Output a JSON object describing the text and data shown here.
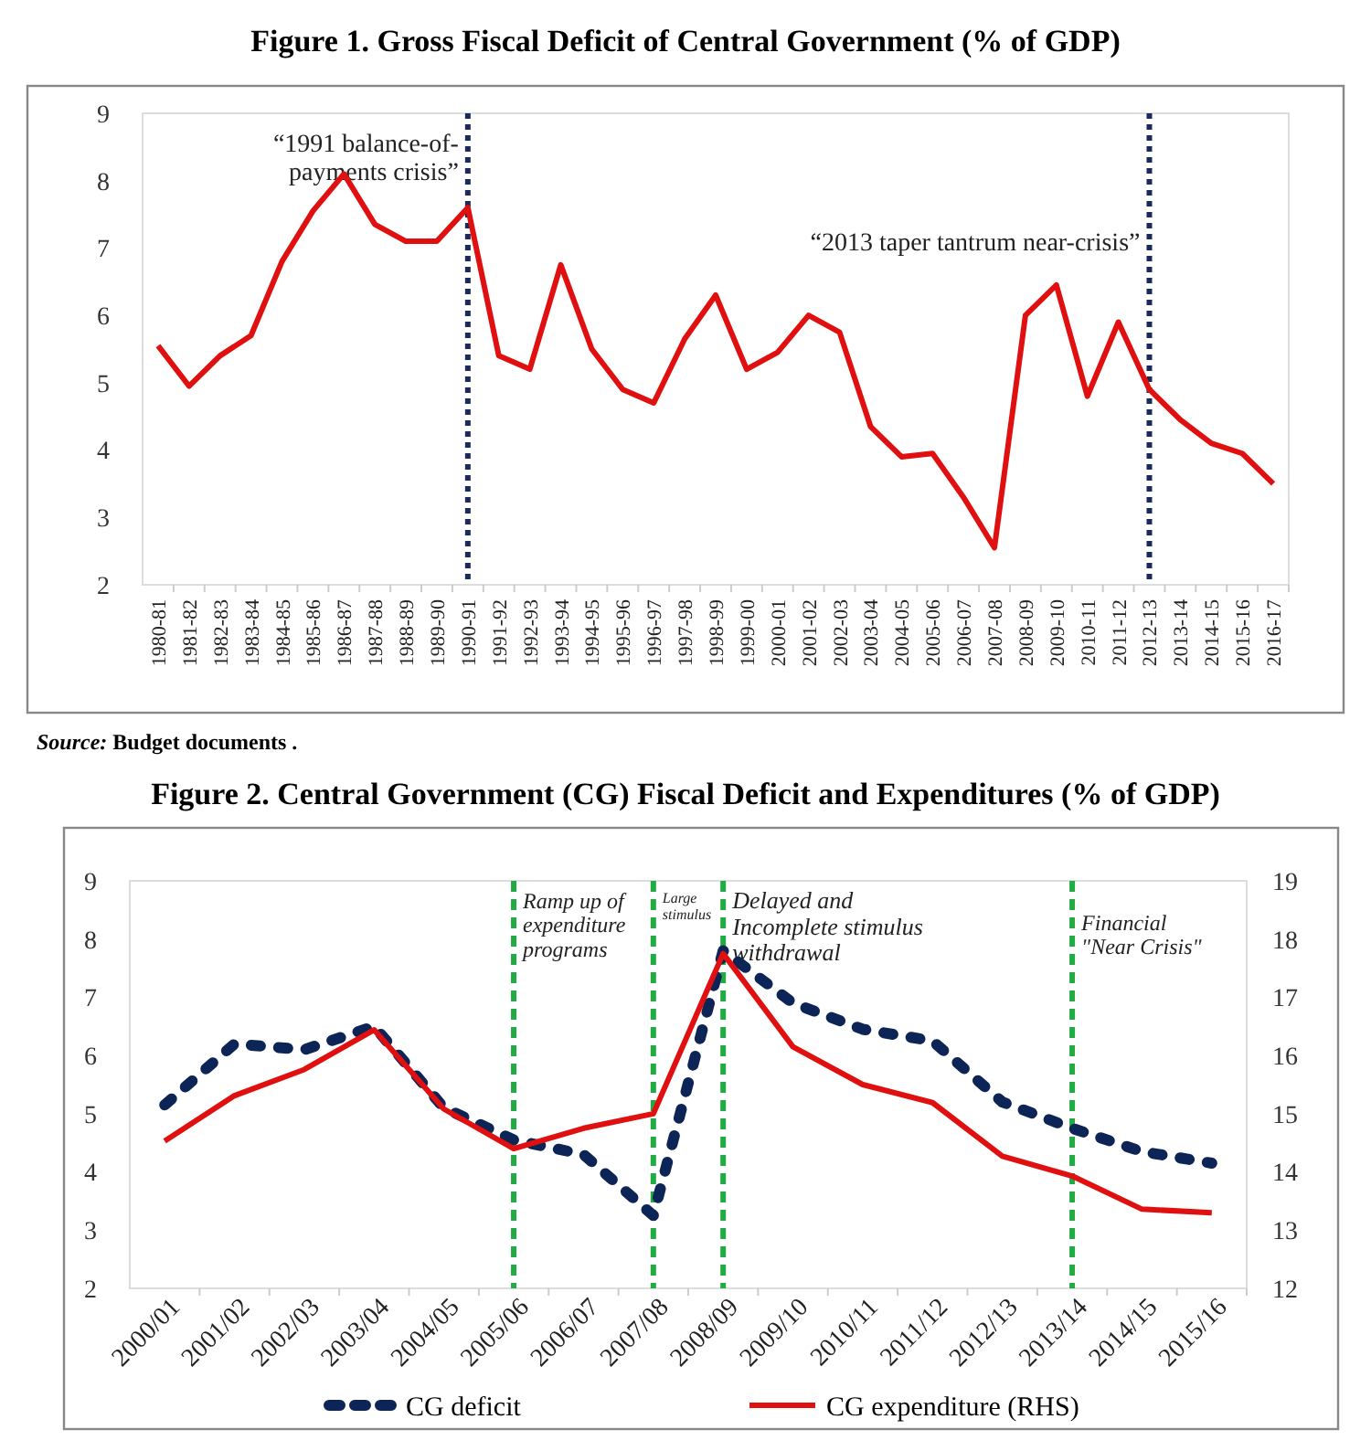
{
  "chart_data": [
    {
      "type": "line",
      "title": "Figure 1. Gross Fiscal Deficit of Central Government (% of GDP)",
      "categories": [
        "1980-81",
        "1981-82",
        "1982-83",
        "1983-84",
        "1984-85",
        "1985-86",
        "1986-87",
        "1987-88",
        "1988-89",
        "1989-90",
        "1990-91",
        "1991-92",
        "1992-93",
        "1993-94",
        "1994-95",
        "1995-96",
        "1996-97",
        "1997-98",
        "1998-99",
        "1999-00",
        "2000-01",
        "2001-02",
        "2002-03",
        "2003-04",
        "2004-05",
        "2005-06",
        "2006-07",
        "2007-08",
        "2008-09",
        "2009-10",
        "2010-11",
        "2011-12",
        "2012-13",
        "2013-14",
        "2014-15",
        "2015-16",
        "2016-17"
      ],
      "series": [
        {
          "color": "#e01010",
          "line_style": "solid",
          "values": [
            5.55,
            4.95,
            5.4,
            5.7,
            6.8,
            7.55,
            8.1,
            7.35,
            7.1,
            7.1,
            7.6,
            5.4,
            5.2,
            6.75,
            5.5,
            4.9,
            4.7,
            5.65,
            6.3,
            5.2,
            5.45,
            6.0,
            5.75,
            4.35,
            3.9,
            3.95,
            3.3,
            2.55,
            6.0,
            6.45,
            4.8,
            5.9,
            4.9,
            4.45,
            4.1,
            3.95,
            3.5
          ]
        }
      ],
      "ylim": [
        2,
        9
      ],
      "yticks": [
        2,
        3,
        4,
        5,
        6,
        7,
        8,
        9
      ],
      "marker": "none",
      "ref_lines": [
        {
          "axis": "x",
          "value": "1990-91",
          "label": "“1991 balance-of-\npayments crisis”",
          "color": "#1a2a5a",
          "line_style": "dotted"
        },
        {
          "axis": "x",
          "value": "2012-13",
          "label": "“2013 taper tantrum near-crisis”",
          "color": "#1a2a5a",
          "line_style": "dotted"
        }
      ],
      "annotations": [
        "Source: Budget documents ."
      ]
    },
    {
      "type": "line",
      "title": "Figure 2. Central Government (CG) Fiscal Deficit and Expenditures (% of GDP)",
      "categories": [
        "2000/01",
        "2001/02",
        "2002/03",
        "2003/04",
        "2004/05",
        "2005/06",
        "2006/07",
        "2007/08",
        "2008/09",
        "2009/10",
        "2010/11",
        "2011/12",
        "2012/13",
        "2013/14",
        "2014/15",
        "2015/16"
      ],
      "series": [
        {
          "name": "CG deficit",
          "color": "#0d2456",
          "line_style": "dotted",
          "values": [
            5.15,
            6.2,
            6.1,
            6.5,
            5.1,
            4.55,
            4.3,
            3.25,
            7.8,
            6.9,
            6.45,
            6.25,
            5.2,
            4.75,
            4.35,
            4.15
          ]
        },
        {
          "name": "CG expenditure (RHS)",
          "color": "#e01010",
          "line_style": "solid",
          "axis": "y2",
          "values": [
            14.53,
            15.31,
            15.76,
            16.44,
            15.08,
            14.4,
            14.75,
            15.0,
            17.75,
            16.15,
            15.5,
            15.19,
            14.27,
            13.93,
            13.36,
            13.3
          ]
        }
      ],
      "ylim": [
        2,
        9
      ],
      "yticks": [
        2,
        3,
        4,
        5,
        6,
        7,
        8,
        9
      ],
      "y2lim": [
        12,
        19
      ],
      "y2ticks": [
        12,
        13,
        14,
        15,
        16,
        17,
        18,
        19
      ],
      "marker": "none",
      "legend": "bottom",
      "ref_lines": [
        {
          "axis": "x",
          "value": "2005/06",
          "label": "Ramp up of\nexpenditure\nprograms",
          "color": "#22aa44",
          "line_style": "dashed"
        },
        {
          "axis": "x",
          "value": "2007/08",
          "label": "Large\nstimulus",
          "color": "#22aa44",
          "line_style": "dashed"
        },
        {
          "axis": "x",
          "value": "2008/09",
          "label": "Delayed and\nIncomplete stimulus\nwithdrawal",
          "color": "#22aa44",
          "line_style": "dashed"
        },
        {
          "axis": "x",
          "value": "2013/14",
          "label": "Financial\n\"Near Crisis\"",
          "color": "#22aa44",
          "line_style": "dashed"
        }
      ]
    }
  ]
}
